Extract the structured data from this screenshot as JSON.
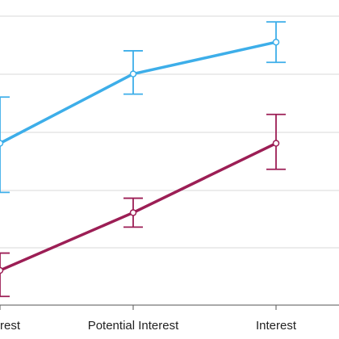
{
  "chart_data": {
    "type": "line",
    "categories": [
      "Interest",
      "Potential Interest",
      "Interest"
    ],
    "ylim": [
      0,
      100
    ],
    "grid": true,
    "error_bars": true,
    "series": [
      {
        "color": "#3daee9",
        "values": [
          56,
          80,
          91
        ],
        "error_low": [
          39,
          73,
          84
        ],
        "error_high": [
          72,
          88,
          98
        ]
      },
      {
        "color": "#9c1e55",
        "values": [
          12,
          32,
          56
        ],
        "error_low": [
          3,
          27,
          47
        ],
        "error_high": [
          18,
          37,
          66
        ]
      }
    ]
  }
}
